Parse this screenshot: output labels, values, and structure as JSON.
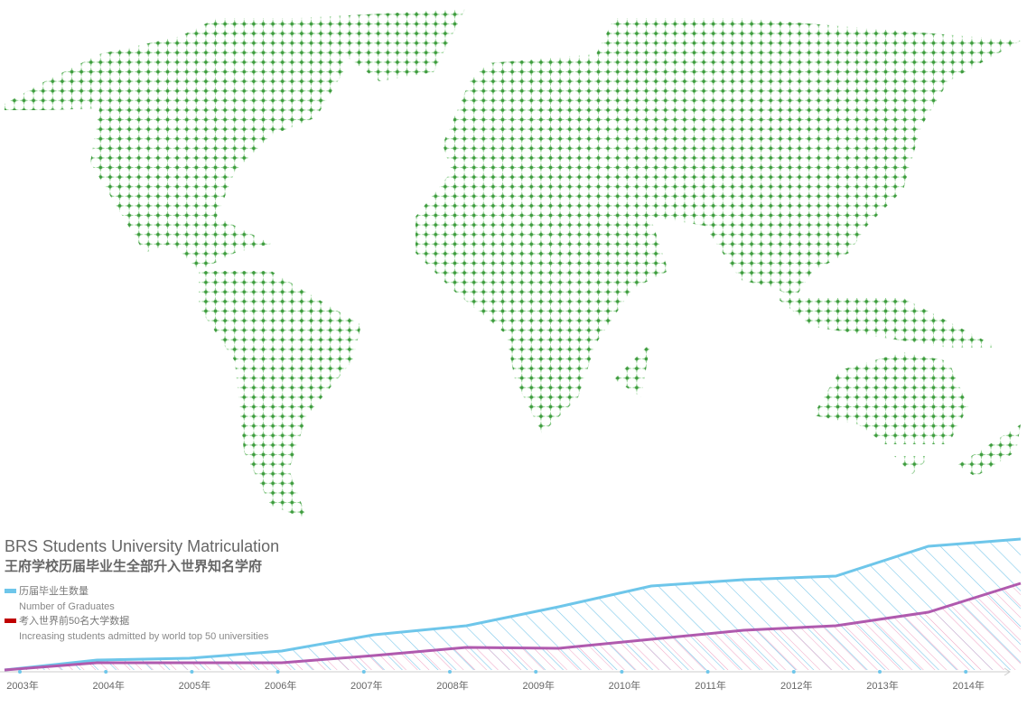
{
  "chart_data": {
    "type": "area",
    "title": "BRS Students University Matriculation",
    "subtitle": "王府学校历届毕业生全部升入世界知名学府",
    "categories": [
      "2003年",
      "2004年",
      "2005年",
      "2006年",
      "2007年",
      "2008年",
      "2009年",
      "2010年",
      "2011年",
      "2012年",
      "2013年",
      "2014年"
    ],
    "series": [
      {
        "name": "历届毕业生数量",
        "description": "Number of Graduates",
        "color": "#6ec6ea",
        "values": [
          0,
          11,
          13,
          21,
          39,
          49,
          70,
          93,
          100,
          104,
          137,
          145
        ]
      },
      {
        "name": "考入世界前50名大学数据",
        "description": "Increasing students admitted by world top 50 universities",
        "color": "#b05aae",
        "legend_color": "#c00000",
        "values": [
          0,
          8,
          8,
          8,
          16,
          25,
          24,
          34,
          44,
          49,
          64,
          96
        ]
      }
    ],
    "ylim": [
      0,
      150
    ]
  }
}
